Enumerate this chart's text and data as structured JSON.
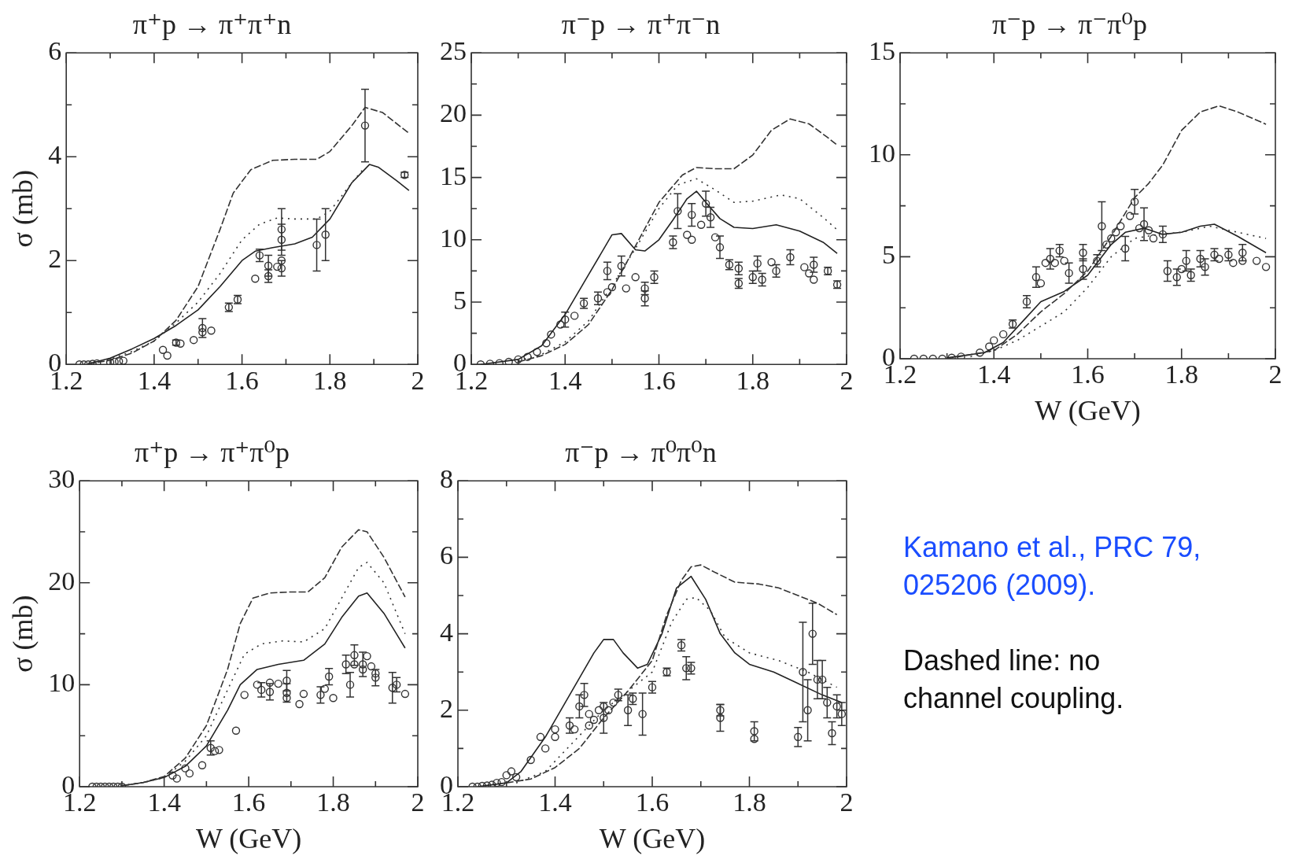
{
  "chart_data": [
    {
      "type": "line",
      "title": "π⁺p → π⁺π⁺n",
      "ylabel": "σ (mb)",
      "xlim": [
        1.2,
        2
      ],
      "ylim": [
        0,
        6
      ],
      "xticks": [
        1.2,
        {
          "value": 1.3,
          "label": null
        },
        1.4,
        {
          "value": 1.5,
          "label": null
        },
        1.6,
        {
          "value": 1.7,
          "label": null
        },
        1.8,
        {
          "value": 1.9,
          "label": null
        },
        2
      ],
      "yticks": [
        0,
        {
          "value": 1,
          "label": null
        },
        2,
        {
          "value": 3,
          "label": null
        },
        4,
        {
          "value": 5,
          "label": null
        },
        6
      ],
      "grid": false,
      "legend": false,
      "series": [
        {
          "type": "line",
          "line_style": "dashed",
          "marker": "none",
          "color": "#333333",
          "x": [
            1.25,
            1.3,
            1.35,
            1.4,
            1.45,
            1.5,
            1.55,
            1.58,
            1.62,
            1.67,
            1.72,
            1.77,
            1.8,
            1.85,
            1.88,
            1.92,
            1.98
          ],
          "values": [
            0.01,
            0.08,
            0.22,
            0.45,
            0.85,
            1.5,
            2.6,
            3.3,
            3.75,
            3.93,
            3.95,
            3.95,
            4.1,
            4.6,
            4.95,
            4.85,
            4.45
          ]
        },
        {
          "type": "line",
          "line_style": "dotted",
          "marker": "none",
          "color": "#333333",
          "x": [
            1.25,
            1.3,
            1.35,
            1.4,
            1.45,
            1.5,
            1.55,
            1.6,
            1.64,
            1.68,
            1.72,
            1.77,
            1.8,
            1.85,
            1.88
          ],
          "values": [
            0.01,
            0.1,
            0.25,
            0.45,
            0.8,
            1.2,
            1.75,
            2.4,
            2.7,
            2.82,
            2.8,
            2.8,
            2.95,
            3.5,
            3.8
          ]
        },
        {
          "type": "line",
          "line_style": "solid",
          "marker": "none",
          "color": "#222222",
          "x": [
            1.25,
            1.3,
            1.35,
            1.4,
            1.45,
            1.5,
            1.55,
            1.6,
            1.63,
            1.67,
            1.72,
            1.76,
            1.8,
            1.85,
            1.89,
            1.91,
            1.95,
            1.98
          ],
          "values": [
            0.01,
            0.12,
            0.3,
            0.5,
            0.75,
            1.05,
            1.5,
            2.0,
            2.18,
            2.25,
            2.32,
            2.45,
            2.8,
            3.5,
            3.85,
            3.8,
            3.55,
            3.35
          ]
        },
        {
          "type": "scatter",
          "marker": "circle",
          "color": "#333333",
          "x": [
            1.23,
            1.24,
            1.25,
            1.26,
            1.27,
            1.3,
            1.31,
            1.32,
            1.33,
            1.42,
            1.43,
            1.45,
            1.46,
            1.49,
            1.51,
            1.51,
            1.53,
            1.57,
            1.59,
            1.63,
            1.64,
            1.66,
            1.66,
            1.68,
            1.69,
            1.69,
            1.69,
            1.69,
            1.77,
            1.79,
            1.88,
            1.97
          ],
          "values": [
            0,
            0,
            0,
            0.01,
            0.02,
            0.04,
            0.05,
            0.06,
            0.07,
            0.28,
            0.17,
            0.42,
            0.4,
            0.47,
            0.7,
            0.62,
            0.65,
            1.1,
            1.25,
            1.65,
            2.1,
            1.9,
            1.7,
            1.88,
            2.4,
            2.6,
            2.0,
            1.85,
            2.3,
            2.5,
            4.6,
            3.65
          ],
          "errors": [
            null,
            null,
            null,
            null,
            null,
            null,
            null,
            null,
            null,
            null,
            null,
            0.05,
            null,
            null,
            0.18,
            null,
            null,
            0.08,
            0.08,
            null,
            0.12,
            0.2,
            0.12,
            null,
            0.3,
            0.4,
            null,
            0.15,
            0.5,
            0.5,
            0.7,
            0.05
          ]
        }
      ]
    },
    {
      "type": "line",
      "title": "π⁻p → π⁺π⁻n",
      "xlim": [
        1.2,
        2
      ],
      "ylim": [
        0,
        25
      ],
      "xticks": [
        1.2,
        {
          "value": 1.3,
          "label": null
        },
        1.4,
        {
          "value": 1.5,
          "label": null
        },
        1.6,
        {
          "value": 1.7,
          "label": null
        },
        1.8,
        {
          "value": 1.9,
          "label": null
        },
        2
      ],
      "yticks": [
        0,
        {
          "value": 2.5,
          "label": null
        },
        5,
        {
          "value": 7.5,
          "label": null
        },
        10,
        {
          "value": 12.5,
          "label": null
        },
        15,
        {
          "value": 17.5,
          "label": null
        },
        20,
        {
          "value": 22.5,
          "label": null
        },
        25
      ],
      "grid": false,
      "legend": false,
      "series": [
        {
          "type": "line",
          "line_style": "dashed",
          "marker": "none",
          "color": "#333333",
          "x": [
            1.3,
            1.35,
            1.4,
            1.45,
            1.5,
            1.55,
            1.6,
            1.65,
            1.68,
            1.72,
            1.76,
            1.8,
            1.84,
            1.88,
            1.92,
            1.96,
            1.98
          ],
          "values": [
            0.2,
            0.7,
            1.6,
            3.2,
            6,
            9.5,
            13,
            15.2,
            15.8,
            15.7,
            15.7,
            16.8,
            18.8,
            19.7,
            19.3,
            18.2,
            17.6
          ]
        },
        {
          "type": "line",
          "line_style": "dotted",
          "marker": "none",
          "color": "#333333",
          "x": [
            1.3,
            1.35,
            1.4,
            1.45,
            1.5,
            1.55,
            1.6,
            1.64,
            1.68,
            1.72,
            1.76,
            1.8,
            1.86,
            1.9,
            1.95,
            1.98
          ],
          "values": [
            0.3,
            0.8,
            1.8,
            3.5,
            6.3,
            9.3,
            12.5,
            14.4,
            14.9,
            14.0,
            13.0,
            13.1,
            13.6,
            13.3,
            11.8,
            10.8
          ]
        },
        {
          "type": "line",
          "line_style": "solid",
          "marker": "none",
          "color": "#222222",
          "x": [
            1.22,
            1.3,
            1.35,
            1.4,
            1.45,
            1.5,
            1.52,
            1.55,
            1.57,
            1.6,
            1.63,
            1.66,
            1.68,
            1.7,
            1.73,
            1.76,
            1.8,
            1.85,
            1.9,
            1.95,
            1.98
          ],
          "values": [
            0,
            0.4,
            1.5,
            4.0,
            7.2,
            10.4,
            10.5,
            9.2,
            9.1,
            10.0,
            11.6,
            13.3,
            13.9,
            13.0,
            11.7,
            11.0,
            10.9,
            11.2,
            10.7,
            9.8,
            8.9
          ]
        },
        {
          "type": "scatter",
          "marker": "circle",
          "color": "#333333",
          "x": [
            1.22,
            1.24,
            1.26,
            1.28,
            1.3,
            1.32,
            1.34,
            1.36,
            1.37,
            1.39,
            1.4,
            1.42,
            1.44,
            1.47,
            1.49,
            1.49,
            1.5,
            1.52,
            1.53,
            1.55,
            1.57,
            1.57,
            1.59,
            1.63,
            1.64,
            1.66,
            1.67,
            1.67,
            1.69,
            1.7,
            1.71,
            1.72,
            1.73,
            1.75,
            1.77,
            1.77,
            1.8,
            1.81,
            1.82,
            1.84,
            1.85,
            1.88,
            1.91,
            1.92,
            1.93,
            1.93,
            1.96,
            1.98
          ],
          "values": [
            0,
            0.05,
            0.1,
            0.2,
            0.4,
            0.6,
            1.0,
            1.7,
            2.4,
            3.2,
            3.6,
            3.9,
            4.9,
            5.3,
            7.5,
            5.8,
            6.2,
            7.9,
            6.1,
            7.0,
            6.1,
            5.3,
            7.0,
            9.8,
            12.3,
            10.4,
            12.0,
            10.0,
            11.2,
            12.9,
            11.8,
            10.2,
            9.4,
            8.0,
            7.7,
            6.5,
            7.0,
            8.1,
            6.8,
            8.2,
            7.5,
            8.6,
            7.8,
            7.3,
            8.0,
            6.8,
            7.5,
            6.4
          ],
          "errors": [
            null,
            null,
            null,
            null,
            null,
            null,
            null,
            null,
            null,
            null,
            0.6,
            null,
            0.4,
            0.5,
            0.7,
            null,
            null,
            0.8,
            null,
            null,
            0.5,
            0.6,
            0.5,
            0.5,
            1.4,
            null,
            0.9,
            null,
            null,
            1.0,
            0.8,
            null,
            0.9,
            0.4,
            0.5,
            0.4,
            0.5,
            0.6,
            0.5,
            null,
            0.5,
            0.6,
            null,
            null,
            0.6,
            null,
            0.3,
            0.3
          ]
        }
      ]
    },
    {
      "type": "line",
      "title": "π⁻p → π⁻π⁰p",
      "xlabel": "W (GeV)",
      "xlim": [
        1.2,
        2
      ],
      "ylim": [
        0,
        15
      ],
      "xticks": [
        1.2,
        {
          "value": 1.3,
          "label": null
        },
        1.4,
        {
          "value": 1.5,
          "label": null
        },
        1.6,
        {
          "value": 1.7,
          "label": null
        },
        1.8,
        {
          "value": 1.9,
          "label": null
        },
        2
      ],
      "yticks": [
        0,
        {
          "value": 2.5,
          "label": null
        },
        5,
        {
          "value": 7.5,
          "label": null
        },
        10,
        {
          "value": 12.5,
          "label": null
        },
        15
      ],
      "grid": false,
      "legend": false,
      "series": [
        {
          "type": "line",
          "line_style": "dashed",
          "marker": "none",
          "color": "#333333",
          "x": [
            1.3,
            1.4,
            1.45,
            1.5,
            1.55,
            1.6,
            1.65,
            1.7,
            1.73,
            1.76,
            1.8,
            1.84,
            1.88,
            1.92,
            1.98
          ],
          "values": [
            0,
            0.4,
            1.2,
            2.3,
            3.2,
            4.3,
            6.0,
            7.9,
            8.6,
            9.5,
            11.2,
            12.1,
            12.4,
            12.1,
            11.5
          ]
        },
        {
          "type": "line",
          "line_style": "dotted",
          "marker": "none",
          "color": "#333333",
          "x": [
            1.35,
            1.4,
            1.45,
            1.5,
            1.55,
            1.6,
            1.65,
            1.7,
            1.75,
            1.8,
            1.86,
            1.9,
            1.98
          ],
          "values": [
            0.1,
            0.4,
            0.9,
            1.6,
            2.3,
            3.5,
            5.0,
            5.9,
            6.1,
            6.2,
            6.5,
            6.3,
            5.9
          ]
        },
        {
          "type": "line",
          "line_style": "solid",
          "marker": "none",
          "color": "#222222",
          "x": [
            1.3,
            1.38,
            1.42,
            1.46,
            1.5,
            1.55,
            1.6,
            1.65,
            1.68,
            1.72,
            1.76,
            1.8,
            1.84,
            1.87,
            1.92,
            1.98
          ],
          "values": [
            0.05,
            0.3,
            0.8,
            1.8,
            2.8,
            3.3,
            4.1,
            5.6,
            6.2,
            6.4,
            6.1,
            6.2,
            6.5,
            6.6,
            6.0,
            5.2
          ]
        },
        {
          "type": "scatter",
          "marker": "circle",
          "color": "#333333",
          "x": [
            1.23,
            1.25,
            1.27,
            1.29,
            1.31,
            1.33,
            1.37,
            1.39,
            1.4,
            1.42,
            1.44,
            1.47,
            1.49,
            1.5,
            1.51,
            1.52,
            1.53,
            1.54,
            1.55,
            1.56,
            1.59,
            1.59,
            1.62,
            1.63,
            1.64,
            1.65,
            1.66,
            1.67,
            1.68,
            1.69,
            1.7,
            1.71,
            1.72,
            1.73,
            1.74,
            1.76,
            1.77,
            1.79,
            1.8,
            1.81,
            1.82,
            1.84,
            1.85,
            1.87,
            1.88,
            1.9,
            1.91,
            1.93,
            1.93,
            1.96,
            1.98
          ],
          "values": [
            0,
            0,
            0,
            0,
            0.05,
            0.1,
            0.3,
            0.6,
            0.9,
            1.2,
            1.7,
            2.8,
            4.0,
            3.7,
            4.7,
            4.9,
            4.7,
            5.3,
            4.8,
            4.2,
            5.2,
            4.4,
            4.8,
            6.5,
            5.6,
            5.9,
            6.2,
            6.5,
            5.4,
            7.0,
            7.7,
            6.4,
            6.6,
            6.3,
            5.9,
            6.1,
            4.3,
            4.0,
            4.4,
            4.8,
            4.1,
            4.9,
            4.5,
            5.1,
            4.9,
            5.1,
            4.7,
            5.2,
            4.8,
            4.8,
            4.5
          ],
          "errors": [
            null,
            null,
            null,
            null,
            null,
            null,
            null,
            null,
            null,
            null,
            0.2,
            0.3,
            0.5,
            null,
            null,
            0.5,
            null,
            0.3,
            null,
            0.5,
            0.4,
            0.5,
            0.3,
            1.2,
            null,
            null,
            null,
            null,
            0.6,
            null,
            0.6,
            null,
            0.8,
            null,
            null,
            0.4,
            0.5,
            0.4,
            null,
            0.5,
            0.3,
            0.4,
            0.4,
            0.3,
            null,
            0.3,
            null,
            0.4,
            null,
            null,
            null
          ]
        }
      ]
    },
    {
      "type": "line",
      "title": "π⁺p → π⁺π⁰p",
      "xlabel": "W (GeV)",
      "ylabel": "σ (mb)",
      "xlim": [
        1.2,
        2
      ],
      "ylim": [
        0,
        30
      ],
      "xticks": [
        1.2,
        {
          "value": 1.3,
          "label": null
        },
        1.4,
        {
          "value": 1.5,
          "label": null
        },
        1.6,
        {
          "value": 1.7,
          "label": null
        },
        1.8,
        {
          "value": 1.9,
          "label": null
        },
        2
      ],
      "yticks": [
        0,
        {
          "value": 5,
          "label": null
        },
        10,
        {
          "value": 15,
          "label": null
        },
        20,
        {
          "value": 25,
          "label": null
        },
        30
      ],
      "grid": false,
      "legend": false,
      "series": [
        {
          "type": "line",
          "line_style": "dashed",
          "marker": "none",
          "color": "#333333",
          "x": [
            1.3,
            1.35,
            1.4,
            1.45,
            1.5,
            1.55,
            1.58,
            1.61,
            1.65,
            1.7,
            1.74,
            1.78,
            1.82,
            1.86,
            1.88,
            1.92,
            1.97
          ],
          "values": [
            0.1,
            0.4,
            1.0,
            2.8,
            6,
            11.5,
            16,
            18.5,
            19,
            19.1,
            19.1,
            20.5,
            23.5,
            25.2,
            25.0,
            22.5,
            18.6
          ]
        },
        {
          "type": "line",
          "line_style": "dotted",
          "marker": "none",
          "color": "#333333",
          "x": [
            1.3,
            1.35,
            1.4,
            1.45,
            1.5,
            1.55,
            1.59,
            1.63,
            1.68,
            1.73,
            1.78,
            1.82,
            1.86,
            1.88,
            1.92,
            1.97
          ],
          "values": [
            0.1,
            0.4,
            0.9,
            2.5,
            5,
            9.5,
            13,
            14,
            14.3,
            14.2,
            15.5,
            18.5,
            21.5,
            22,
            20,
            15
          ]
        },
        {
          "type": "line",
          "line_style": "solid",
          "marker": "none",
          "color": "#222222",
          "x": [
            1.3,
            1.35,
            1.4,
            1.45,
            1.5,
            1.55,
            1.58,
            1.62,
            1.67,
            1.73,
            1.78,
            1.82,
            1.86,
            1.88,
            1.92,
            1.97
          ],
          "values": [
            0.1,
            0.4,
            0.9,
            2.0,
            4.0,
            7.5,
            10,
            11.5,
            12,
            12.4,
            14,
            16.6,
            18.7,
            19,
            17,
            13.6
          ]
        },
        {
          "type": "scatter",
          "marker": "circle",
          "color": "#333333",
          "x": [
            1.23,
            1.24,
            1.25,
            1.26,
            1.27,
            1.28,
            1.29,
            1.3,
            1.42,
            1.43,
            1.45,
            1.46,
            1.49,
            1.51,
            1.52,
            1.53,
            1.57,
            1.59,
            1.62,
            1.63,
            1.65,
            1.65,
            1.67,
            1.69,
            1.69,
            1.69,
            1.72,
            1.73,
            1.77,
            1.78,
            1.79,
            1.8,
            1.83,
            1.84,
            1.85,
            1.85,
            1.87,
            1.87,
            1.88,
            1.89,
            1.9,
            1.9,
            1.94,
            1.95,
            1.97
          ],
          "values": [
            0,
            0,
            0,
            0,
            0,
            0,
            0,
            0,
            1.1,
            0.8,
            1.8,
            1.3,
            2.1,
            3.8,
            3.5,
            3.6,
            5.5,
            9.0,
            10.0,
            9.5,
            10.2,
            9.3,
            10.1,
            10.4,
            9.2,
            8.7,
            8.1,
            9.1,
            9.0,
            9.6,
            10.8,
            8.7,
            12.0,
            10.0,
            12.9,
            12.0,
            12.0,
            11.5,
            12.8,
            11.8,
            11.1,
            10.7,
            9.7,
            10.0,
            9.1
          ],
          "errors": [
            null,
            null,
            null,
            null,
            null,
            null,
            null,
            null,
            null,
            null,
            null,
            null,
            null,
            0.7,
            null,
            null,
            null,
            null,
            null,
            0.7,
            null,
            0.8,
            null,
            1.0,
            0.9,
            null,
            null,
            null,
            0.8,
            null,
            0.8,
            null,
            0.9,
            1.2,
            1.0,
            null,
            1.2,
            null,
            null,
            null,
            null,
            0.8,
            1.5,
            0.7,
            null
          ]
        }
      ]
    },
    {
      "type": "line",
      "title": "π⁻p → π⁰π⁰n",
      "xlabel": "W (GeV)",
      "xlim": [
        1.2,
        2
      ],
      "ylim": [
        0,
        8
      ],
      "xticks": [
        1.2,
        {
          "value": 1.3,
          "label": null
        },
        1.4,
        {
          "value": 1.5,
          "label": null
        },
        1.6,
        {
          "value": 1.7,
          "label": null
        },
        1.8,
        {
          "value": 1.9,
          "label": null
        },
        2
      ],
      "yticks": [
        0,
        {
          "value": 1,
          "label": null
        },
        2,
        {
          "value": 3,
          "label": null
        },
        4,
        {
          "value": 5,
          "label": null
        },
        6,
        {
          "value": 7,
          "label": null
        },
        8
      ],
      "grid": false,
      "legend": false,
      "series": [
        {
          "type": "line",
          "line_style": "dashed",
          "marker": "none",
          "color": "#333333",
          "x": [
            1.3,
            1.35,
            1.4,
            1.45,
            1.5,
            1.55,
            1.6,
            1.63,
            1.66,
            1.68,
            1.7,
            1.73,
            1.77,
            1.82,
            1.86,
            1.9,
            1.94,
            1.98
          ],
          "values": [
            0.1,
            0.2,
            0.5,
            1.0,
            1.8,
            2.5,
            3.3,
            4.5,
            5.4,
            5.75,
            5.8,
            5.6,
            5.35,
            5.3,
            5.2,
            5.0,
            4.8,
            4.5
          ]
        },
        {
          "type": "line",
          "line_style": "dotted",
          "marker": "none",
          "color": "#333333",
          "x": [
            1.32,
            1.38,
            1.44,
            1.5,
            1.55,
            1.6,
            1.64,
            1.67,
            1.69,
            1.72,
            1.75,
            1.8,
            1.86,
            1.92,
            1.98
          ],
          "values": [
            0.1,
            0.4,
            1.2,
            2.0,
            2.5,
            3.0,
            4.3,
            4.9,
            4.95,
            4.6,
            3.9,
            3.5,
            3.3,
            3.0,
            2.6
          ]
        },
        {
          "type": "line",
          "line_style": "solid",
          "marker": "none",
          "color": "#222222",
          "x": [
            1.24,
            1.3,
            1.33,
            1.38,
            1.43,
            1.48,
            1.5,
            1.52,
            1.54,
            1.57,
            1.59,
            1.62,
            1.65,
            1.68,
            1.71,
            1.74,
            1.77,
            1.8,
            1.85,
            1.9,
            1.95,
            1.99
          ],
          "values": [
            0,
            0.1,
            0.4,
            1.3,
            2.4,
            3.5,
            3.85,
            3.85,
            3.5,
            3.1,
            3.2,
            4.0,
            5.2,
            5.5,
            4.9,
            4.0,
            3.5,
            3.2,
            3.0,
            2.7,
            2.4,
            2.2
          ]
        },
        {
          "type": "scatter",
          "marker": "circle",
          "color": "#333333",
          "x": [
            1.23,
            1.24,
            1.25,
            1.26,
            1.27,
            1.28,
            1.29,
            1.3,
            1.31,
            1.32,
            1.35,
            1.37,
            1.38,
            1.4,
            1.4,
            1.43,
            1.44,
            1.45,
            1.46,
            1.47,
            1.47,
            1.48,
            1.49,
            1.5,
            1.5,
            1.51,
            1.52,
            1.53,
            1.55,
            1.56,
            1.58,
            1.6,
            1.63,
            1.66,
            1.67,
            1.68,
            1.74,
            1.74,
            1.81,
            1.81,
            1.9,
            1.91,
            1.92,
            1.93,
            1.94,
            1.95,
            1.96,
            1.97,
            1.98,
            1.99
          ],
          "values": [
            0,
            0,
            0.02,
            0.03,
            0.05,
            0.1,
            0.12,
            0.3,
            0.4,
            0.25,
            0.7,
            1.3,
            1.0,
            1.5,
            1.3,
            1.6,
            1.5,
            2.1,
            2.4,
            1.9,
            1.6,
            1.75,
            2.0,
            2.1,
            1.8,
            2.0,
            2.2,
            2.4,
            2.0,
            2.3,
            1.9,
            2.6,
            3.0,
            3.7,
            3.1,
            3.1,
            2.0,
            1.8,
            1.45,
            1.25,
            1.3,
            3.0,
            2.0,
            4.0,
            2.8,
            2.8,
            2.2,
            1.4,
            2.1,
            1.9
          ],
          "errors": [
            null,
            null,
            null,
            null,
            null,
            null,
            null,
            null,
            null,
            null,
            null,
            null,
            null,
            null,
            null,
            0.2,
            null,
            0.3,
            0.3,
            null,
            null,
            null,
            null,
            null,
            0.4,
            null,
            null,
            0.15,
            0.4,
            0.15,
            0.55,
            0.15,
            0.1,
            0.15,
            0.3,
            0.15,
            0.15,
            0.35,
            0.25,
            null,
            0.25,
            1.3,
            0.8,
            0.8,
            0.5,
            0.5,
            0.4,
            0.3,
            0.3,
            0.3
          ]
        }
      ]
    },
    {
      "type": "other",
      "annotations": [
        "Kamano et al., PRC 79, 025206 (2009).",
        "Dashed line: no channel coupling."
      ]
    }
  ]
}
